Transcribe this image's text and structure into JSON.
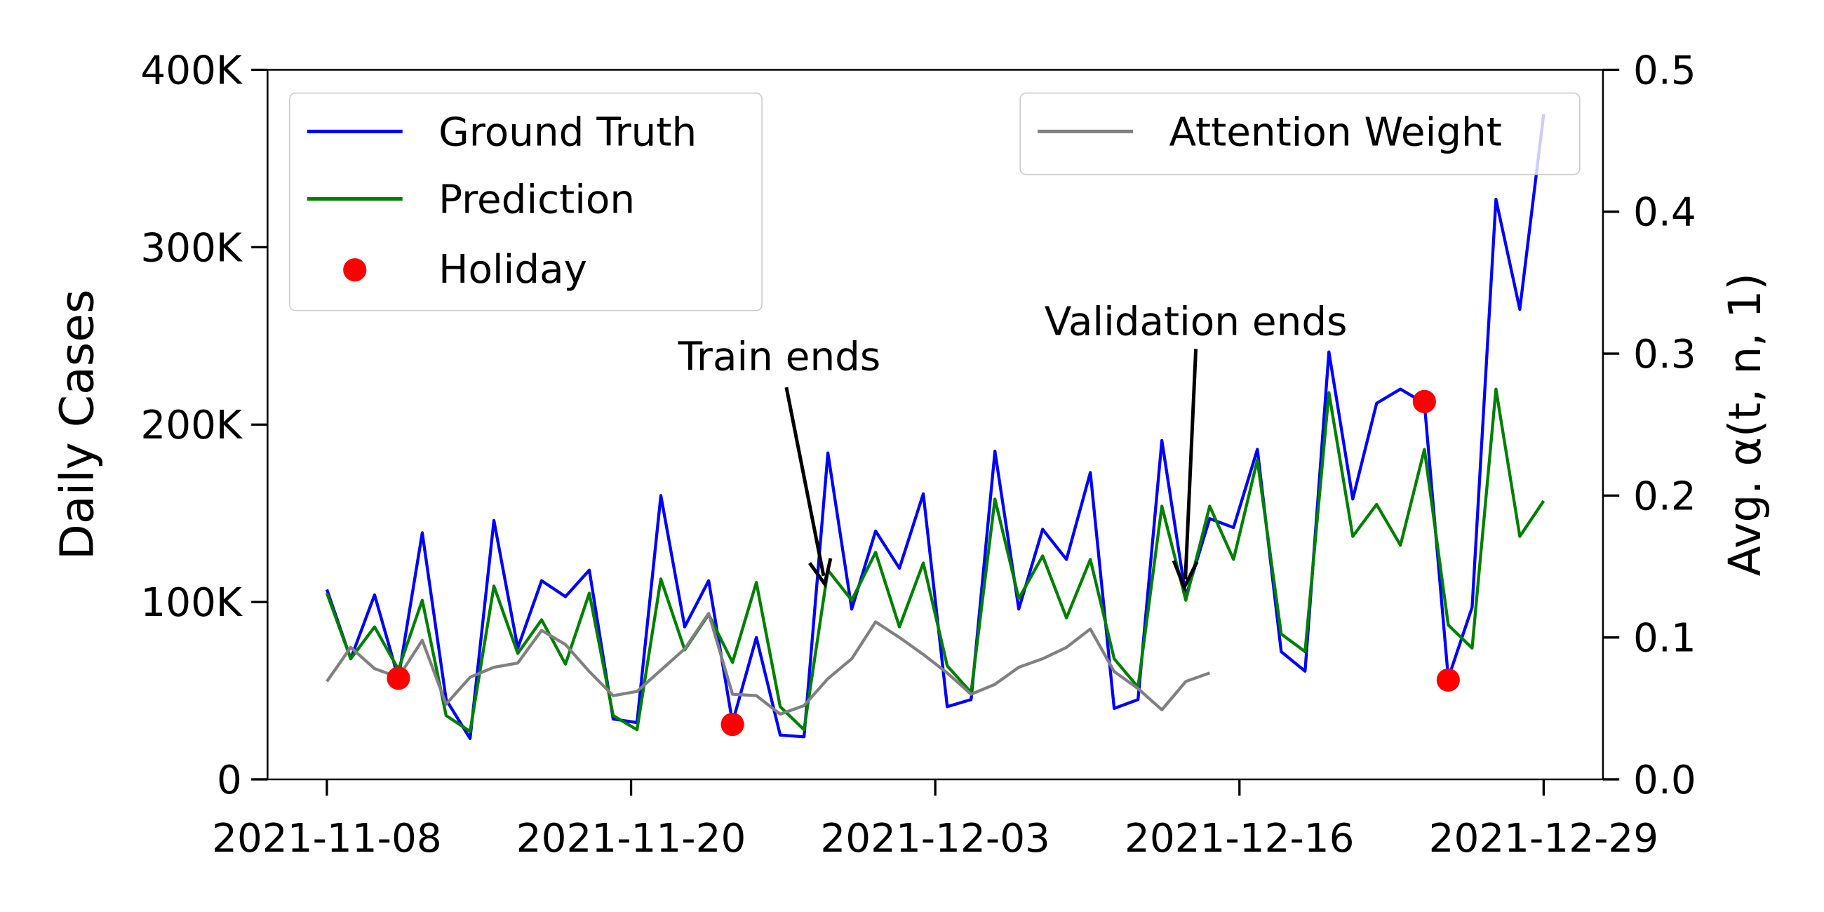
{
  "chart_data": {
    "type": "line",
    "xlabel": "",
    "ylabel": "Daily Cases",
    "ylabel_right": "Avg. α(t, n, 1)",
    "x_start": "2021-11-08",
    "x_end": "2021-12-29",
    "x_tick_labels": [
      "2021-11-08",
      "2021-11-20",
      "2021-12-03",
      "2021-12-16",
      "2021-12-29"
    ],
    "ylim": [
      0,
      400000
    ],
    "y_ticks": [
      0,
      100000,
      200000,
      300000,
      400000
    ],
    "y_tick_labels": [
      "0",
      "100K",
      "200K",
      "300K",
      "400K"
    ],
    "ylim_right": [
      0,
      0.5
    ],
    "y_ticks_right": [
      0,
      0.1,
      0.2,
      0.3,
      0.4,
      0.5
    ],
    "y_tick_labels_right": [
      "0.0",
      "0.1",
      "0.2",
      "0.3",
      "0.4",
      "0.5"
    ],
    "grid": false,
    "series": [
      {
        "name": "Ground Truth",
        "color": "#0000ff",
        "axis": "left",
        "values": [
          107000,
          68000,
          104000,
          57000,
          139000,
          45000,
          23000,
          146000,
          74000,
          112000,
          103000,
          118000,
          34000,
          32000,
          160000,
          86000,
          112000,
          32000,
          80000,
          25000,
          24000,
          184000,
          96000,
          140000,
          119000,
          161000,
          41000,
          45000,
          185000,
          96000,
          141000,
          124000,
          173000,
          40000,
          45000,
          191000,
          103000,
          147000,
          142000,
          186000,
          72000,
          61000,
          241000,
          158000,
          212000,
          220000,
          212000,
          57000,
          97000,
          327000,
          265000,
          375000
        ]
      },
      {
        "name": "Prediction",
        "color": "#008000",
        "axis": "left",
        "values": [
          105000,
          68000,
          86000,
          62000,
          101000,
          36000,
          27000,
          109000,
          71000,
          90000,
          65000,
          105000,
          36000,
          28000,
          113000,
          73000,
          93000,
          66000,
          111000,
          41000,
          28000,
          118000,
          101000,
          128000,
          86000,
          122000,
          64000,
          49000,
          158000,
          102000,
          126000,
          91000,
          124000,
          68000,
          52000,
          154000,
          101000,
          154000,
          124000,
          180000,
          82000,
          72000,
          218000,
          137000,
          155000,
          132000,
          186000,
          87000,
          74000,
          220000,
          137000,
          157000
        ]
      },
      {
        "name": "Attention Weight",
        "color": "#808080",
        "axis": "right",
        "values": [
          0.069,
          0.093,
          0.078,
          0.072,
          0.098,
          0.053,
          0.072,
          0.079,
          0.082,
          0.105,
          0.095,
          0.076,
          0.059,
          0.062,
          0.077,
          0.092,
          0.117,
          0.06,
          0.059,
          0.046,
          0.052,
          0.071,
          0.085,
          0.111,
          0.1,
          0.088,
          0.075,
          0.06,
          0.067,
          0.079,
          0.085,
          0.093,
          0.106,
          0.076,
          0.064,
          0.049,
          0.069,
          0.075
        ]
      }
    ],
    "holidays": {
      "name": "Holiday",
      "color": "#ff0000",
      "points": [
        {
          "index": 3,
          "value": 57000
        },
        {
          "index": 17,
          "value": 31000
        },
        {
          "index": 46,
          "value": 213000
        },
        {
          "index": 47,
          "value": 56000
        }
      ]
    },
    "annotations": [
      {
        "text": "Train ends",
        "index": 21
      },
      {
        "text": "Validation ends",
        "index": 36
      }
    ],
    "legend_left": [
      "Ground Truth",
      "Prediction",
      "Holiday"
    ],
    "legend_right": [
      "Attention Weight"
    ],
    "legend_placement": [
      "top-left",
      "top-right"
    ]
  }
}
